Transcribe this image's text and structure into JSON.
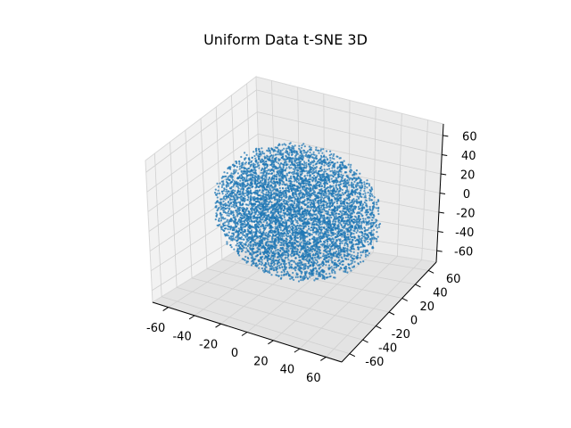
{
  "chart_data": {
    "type": "scatter",
    "projection": "3d",
    "title": "Uniform Data t-SNE 3D",
    "xlabel": "",
    "ylabel": "",
    "zlabel": "",
    "x_ticks": [
      -60,
      -40,
      -20,
      0,
      20,
      40,
      60
    ],
    "y_ticks": [
      -60,
      -40,
      -20,
      0,
      20,
      40,
      60
    ],
    "z_ticks": [
      -60,
      -40,
      -20,
      0,
      20,
      40,
      60
    ],
    "xlim": [
      -72,
      72
    ],
    "ylim": [
      -72,
      72
    ],
    "zlim": [
      -72,
      72
    ],
    "grid": true,
    "legend": "none",
    "point_color": "#1f77b4",
    "pane_color": "#f2f2f2",
    "grid_color": "#d0d0d0",
    "series": [
      {
        "points_description": "roughly uniform solid ball of points",
        "n_points": 10000,
        "center": [
          0,
          0,
          0
        ],
        "radius": 65
      }
    ]
  }
}
